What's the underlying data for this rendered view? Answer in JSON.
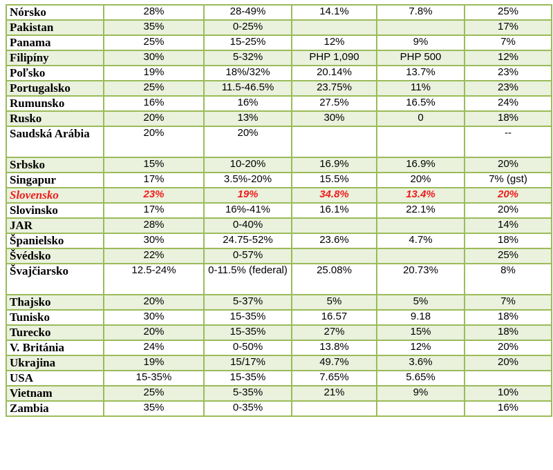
{
  "rows": [
    {
      "country": "Nórsko",
      "c1": "28%",
      "c2": "28-49%",
      "c3": "14.1%",
      "c4": "7.8%",
      "c5": "25%"
    },
    {
      "country": "Pakistan",
      "c1": "35%",
      "c2": "0-25%",
      "c3": "",
      "c4": "",
      "c5": "17%"
    },
    {
      "country": "Panama",
      "c1": "25%",
      "c2": "15-25%",
      "c3": "12%",
      "c4": "9%",
      "c5": "7%"
    },
    {
      "country": "Filipíny",
      "c1": "30%",
      "c2": "5-32%",
      "c3": "PHP 1,090",
      "c4": "PHP 500",
      "c5": "12%"
    },
    {
      "country": "Poľsko",
      "c1": "19%",
      "c2": "18%/32%",
      "c3": "20.14%",
      "c4": "13.7%",
      "c5": "23%"
    },
    {
      "country": "Portugalsko",
      "c1": "25%",
      "c2": "11.5-46.5%",
      "c3": "23.75%",
      "c4": "11%",
      "c5": "23%"
    },
    {
      "country": "Rumunsko",
      "c1": "16%",
      "c2": "16%",
      "c3": "27.5%",
      "c4": "16.5%",
      "c5": "24%"
    },
    {
      "country": "Rusko",
      "c1": "20%",
      "c2": "13%",
      "c3": "30%",
      "c4": "0",
      "c5": "18%"
    },
    {
      "country": "Saudská Arábia",
      "c1": "20%",
      "c2": "20%",
      "c3": "",
      "c4": "",
      "c5": "--"
    },
    {
      "country": "Srbsko",
      "c1": "15%",
      "c2": "10-20%",
      "c3": "16.9%",
      "c4": "16.9%",
      "c5": "20%"
    },
    {
      "country": "Singapur",
      "c1": "17%",
      "c2": "3.5%-20%",
      "c3": "15.5%",
      "c4": "20%",
      "c5": "7% (gst)"
    },
    {
      "country": "Slovensko",
      "c1": "23%",
      "c2": "19%",
      "c3": "34.8%",
      "c4": "13.4%",
      "c5": "20%"
    },
    {
      "country": "Slovinsko",
      "c1": "17%",
      "c2": "16%-41%",
      "c3": "16.1%",
      "c4": "22.1%",
      "c5": "20%"
    },
    {
      "country": "JAR",
      "c1": "28%",
      "c2": "0-40%",
      "c3": "",
      "c4": "",
      "c5": "14%"
    },
    {
      "country": "Španielsko",
      "c1": "30%",
      "c2": "24.75-52%",
      "c3": "23.6%",
      "c4": "4.7%",
      "c5": "18%"
    },
    {
      "country": "Švédsko",
      "c1": "22%",
      "c2": "0-57%",
      "c3": "",
      "c4": "",
      "c5": "25%"
    },
    {
      "country": "Švajčiarsko",
      "c1": "12.5-24%",
      "c2": "0-11.5% (federal)",
      "c3": "25.08%",
      "c4": "20.73%",
      "c5": "8%"
    },
    {
      "country": "Thajsko",
      "c1": "20%",
      "c2": "5-37%",
      "c3": "5%",
      "c4": "5%",
      "c5": "7%"
    },
    {
      "country": "Tunisko",
      "c1": "30%",
      "c2": "15-35%",
      "c3": "16.57",
      "c4": "9.18",
      "c5": "18%"
    },
    {
      "country": "Turecko",
      "c1": "20%",
      "c2": "15-35%",
      "c3": "27%",
      "c4": "15%",
      "c5": "18%"
    },
    {
      "country": "V. Británia",
      "c1": "24%",
      "c2": "0-50%",
      "c3": "13.8%",
      "c4": "12%",
      "c5": "20%"
    },
    {
      "country": "Ukrajina",
      "c1": "19%",
      "c2": "15/17%",
      "c3": "49.7%",
      "c4": "3.6%",
      "c5": "20%"
    },
    {
      "country": "USA",
      "c1": "15-35%",
      "c2": "15-35%",
      "c3": "7.65%",
      "c4": "5.65%",
      "c5": ""
    },
    {
      "country": "Vietnam",
      "c1": "25%",
      "c2": "5-35%",
      "c3": "21%",
      "c4": "9%",
      "c5": "10%"
    },
    {
      "country": "Zambia",
      "c1": "35%",
      "c2": "0-35%",
      "c3": "",
      "c4": "",
      "c5": "16%"
    }
  ],
  "colors": {
    "border": "#9bbb59",
    "shade": "#eaf1dd",
    "highlight": "#ee1c1c"
  }
}
